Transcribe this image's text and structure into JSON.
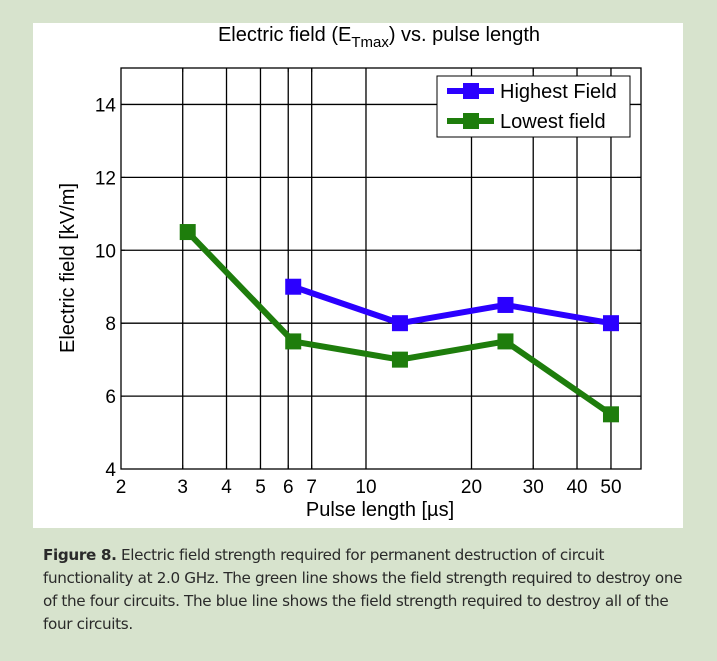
{
  "chart_data": {
    "type": "line",
    "title": "Electric field (E",
    "title_subscript": "Tmax",
    "title_suffix": ") vs. pulse length",
    "xlabel": "Pulse length [µs]",
    "ylabel": "Electric field [kV/m]",
    "xscale": "log",
    "xlim": [
      2,
      60
    ],
    "ylim": [
      4,
      15
    ],
    "grid": true,
    "xticks": [
      2,
      3,
      4,
      5,
      6,
      7,
      10,
      20,
      30,
      40,
      50
    ],
    "xtick_labels": [
      "2",
      "3",
      "4",
      "5",
      "6",
      "7",
      "10",
      "20",
      "30",
      "40",
      "50"
    ],
    "yticks": [
      4,
      6,
      8,
      10,
      12,
      14
    ],
    "ytick_labels": [
      "4",
      "6",
      "8",
      "10",
      "12",
      "14"
    ],
    "legend_position": "top-right",
    "series": [
      {
        "name": "Highest Field",
        "color": "#2b00ff",
        "marker": "square",
        "x": [
          6.2,
          12.5,
          25,
          50
        ],
        "y": [
          9,
          8,
          8.5,
          8
        ]
      },
      {
        "name": "Lowest field",
        "color": "#1e7d0c",
        "marker": "square",
        "x": [
          3.1,
          6.2,
          12.5,
          25,
          50
        ],
        "y": [
          10.5,
          7.5,
          7,
          7.5,
          5.5
        ]
      }
    ]
  },
  "caption": {
    "label": "Figure 8.",
    "text": " Electric field strength required for permanent destruction of circuit functionality at 2.0 GHz. The green line shows the field strength required to destroy one of the four circuits. The blue line shows the field strength required to destroy all of the four circuits."
  }
}
